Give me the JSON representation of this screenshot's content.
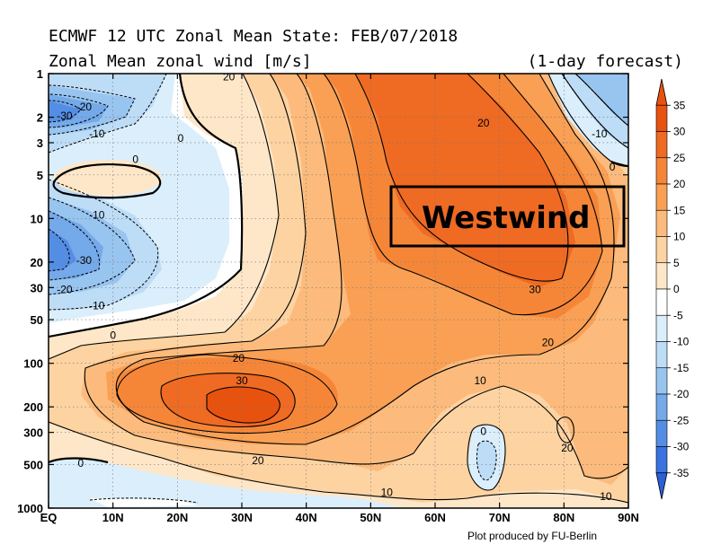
{
  "header": {
    "title": "ECMWF 12 UTC Zonal Mean State: FEB/07/2018",
    "subtitle": "Zonal Mean zonal wind [m/s]",
    "forecast": "(1-day forecast)"
  },
  "annotation": {
    "label": "Westwind"
  },
  "credit": "Plot produced by FU-Berlin",
  "chart_data": {
    "type": "heatmap",
    "title": "ECMWF 12 UTC Zonal Mean State: FEB/07/2018",
    "subtitle": "Zonal Mean zonal wind [m/s]",
    "xlabel": "",
    "ylabel": "",
    "x_ticks": [
      "EQ",
      "10N",
      "20N",
      "30N",
      "40N",
      "50N",
      "60N",
      "70N",
      "80N",
      "90N"
    ],
    "x_values": [
      0,
      10,
      20,
      30,
      40,
      50,
      60,
      70,
      80,
      90
    ],
    "xlim": [
      0,
      90
    ],
    "y_ticks": [
      "1",
      "2",
      "3",
      "5",
      "10",
      "20",
      "30",
      "50",
      "100",
      "200",
      "300",
      "500",
      "1000"
    ],
    "y_values": [
      1,
      2,
      3,
      5,
      10,
      20,
      30,
      50,
      100,
      200,
      300,
      500,
      1000
    ],
    "ylim": [
      1,
      1000
    ],
    "y_scale": "log",
    "y_inverted": true,
    "colorbar": {
      "levels": [
        35,
        30,
        25,
        20,
        15,
        10,
        5,
        0,
        -5,
        -10,
        -15,
        -20,
        -25,
        -30,
        -35
      ],
      "labels": [
        "35",
        "30",
        "25",
        "20",
        "15",
        "10",
        "5",
        "0",
        "-5",
        "-10",
        "-15",
        "-20",
        "-25",
        "-30",
        "-35"
      ],
      "colors": [
        "#e8520f",
        "#ef6a22",
        "#f58638",
        "#f9a055",
        "#fcbb7c",
        "#fdd3a2",
        "#fee7c8",
        "#ffffff",
        "#dbeefb",
        "#bddcf6",
        "#98c4f0",
        "#74a9ea",
        "#548ee4",
        "#3a72df",
        "#2a5fd8"
      ]
    },
    "grid": true,
    "contour_labels": [
      {
        "value": "20",
        "lat": 28,
        "p": 1.05
      },
      {
        "value": "-20",
        "lat": 5.5,
        "p": 1.7
      },
      {
        "value": "-30",
        "lat": 2.5,
        "p": 1.95
      },
      {
        "value": "-10",
        "lat": 7.5,
        "p": 2.6
      },
      {
        "value": "0",
        "lat": 20.5,
        "p": 2.8
      },
      {
        "value": "0",
        "lat": 13.5,
        "p": 3.9
      },
      {
        "value": "-10",
        "lat": 7.5,
        "p": 9.5
      },
      {
        "value": "-30",
        "lat": 5.5,
        "p": 19.5
      },
      {
        "value": "-20",
        "lat": 2.5,
        "p": 31
      },
      {
        "value": "-10",
        "lat": 7.5,
        "p": 40
      },
      {
        "value": "0",
        "lat": 10,
        "p": 64
      },
      {
        "value": "20",
        "lat": 67.5,
        "p": 2.2
      },
      {
        "value": "-10",
        "lat": 85.5,
        "p": 2.6
      },
      {
        "value": "0",
        "lat": 87.5,
        "p": 4.4
      },
      {
        "value": "30",
        "lat": 75.5,
        "p": 31
      },
      {
        "value": "20",
        "lat": 77.5,
        "p": 72
      },
      {
        "value": "20",
        "lat": 29.5,
        "p": 92
      },
      {
        "value": "30",
        "lat": 30,
        "p": 132
      },
      {
        "value": "10",
        "lat": 67,
        "p": 132
      },
      {
        "value": "0",
        "lat": 67.5,
        "p": 295
      },
      {
        "value": "20",
        "lat": 80.5,
        "p": 385
      },
      {
        "value": "0",
        "lat": 5,
        "p": 490
      },
      {
        "value": "20",
        "lat": 32.5,
        "p": 470
      },
      {
        "value": "10",
        "lat": 52.5,
        "p": 780
      },
      {
        "value": "10",
        "lat": 86.5,
        "p": 830
      }
    ]
  }
}
